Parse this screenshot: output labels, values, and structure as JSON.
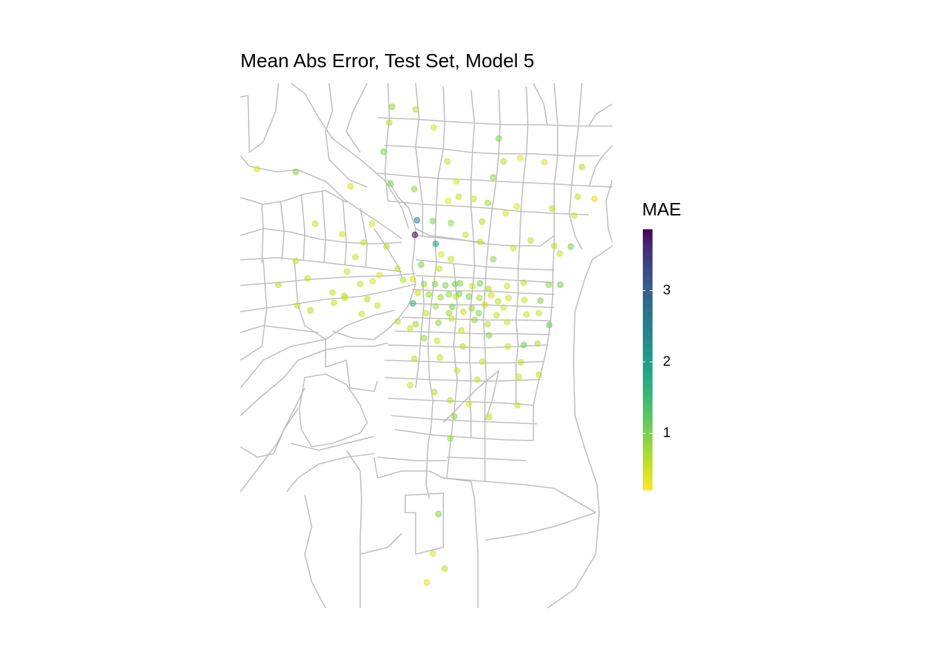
{
  "title": "Mean Abs Error, Test Set, Model 5",
  "legend": {
    "title": "MAE",
    "ticks": [
      {
        "value": 1,
        "label": "1"
      },
      {
        "value": 2,
        "label": "2"
      },
      {
        "value": 3,
        "label": "3"
      }
    ],
    "range": [
      0.2,
      3.85
    ],
    "palette": [
      "#fde725",
      "#b5de2b",
      "#6ece58",
      "#35b779",
      "#1f9e89",
      "#26828e",
      "#31688e",
      "#3e4989",
      "#482878",
      "#440154"
    ]
  },
  "colors": {
    "roads": "#bdbdbd",
    "background": "#ffffff"
  }
}
